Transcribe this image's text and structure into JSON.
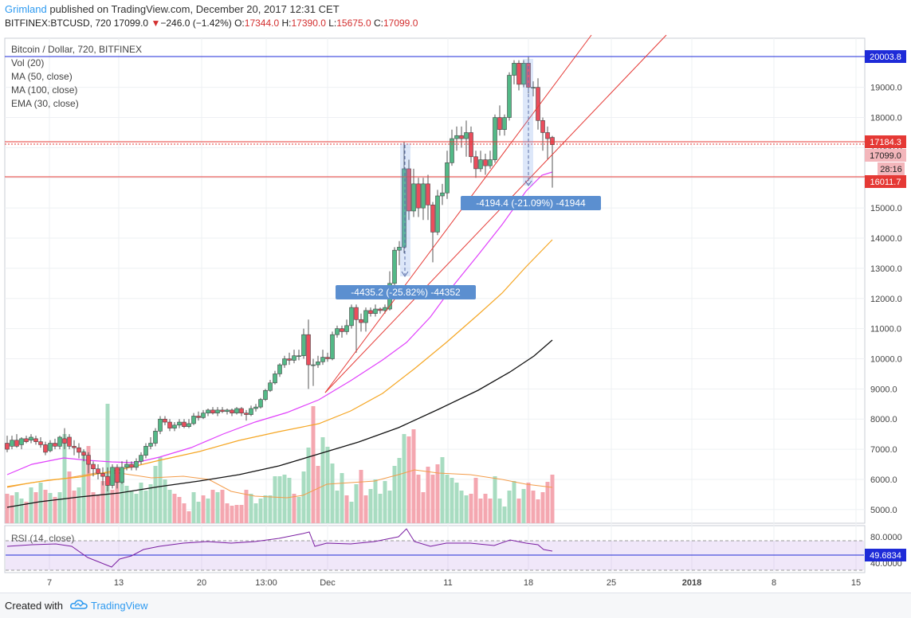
{
  "header": {
    "author": "Grimland",
    "published": "published on TradingView.com, December 20, 2017 12:31 CET",
    "symbol_line": "BITFINEX:BTCUSD, 720",
    "last": "17099.0",
    "change_arrow": "▼",
    "change": "−246.0 (−1.42%)",
    "o_label": "O:",
    "o": "17344.0",
    "h_label": "H:",
    "h": "17390.0",
    "l_label": "L:",
    "l": "15675.0",
    "c_label": "C:",
    "c": "17099.0"
  },
  "legend": {
    "title": "Bitcoin / Dollar, 720, BITFINEX",
    "items": [
      "Vol (20)",
      "MA (50, close)",
      "MA (100, close)",
      "EMA (30, close)"
    ]
  },
  "rsi": {
    "label": "RSI (14, close)",
    "value_tag": "49.6834",
    "ticks": [
      "80.0000",
      "40.0000"
    ]
  },
  "price_axis": {
    "ticks": [
      "19000.0",
      "18000.0",
      "17000.0",
      "16000.0",
      "15000.0",
      "14000.0",
      "13000.0",
      "12000.0",
      "11000.0",
      "10000.0",
      "9000.0",
      "8000.0",
      "7000.0",
      "6000.0",
      "5000.0"
    ],
    "tags": [
      {
        "text": "20003.8",
        "style": "blue"
      },
      {
        "text": "17184.3",
        "style": "red"
      },
      {
        "text": "17099.0",
        "style": "pink"
      },
      {
        "text": "28:16",
        "style": "pink"
      },
      {
        "text": "16011.7",
        "style": "red"
      }
    ]
  },
  "time_axis": {
    "ticks": [
      "7",
      "13",
      "20",
      "13:00",
      "Dec",
      "11",
      "18",
      "25",
      "2018",
      "8",
      "15"
    ]
  },
  "annotations": [
    {
      "text": "-4435.2 (-25.82%) -44352"
    },
    {
      "text": "-4194.4 (-21.09%) -41944"
    }
  ],
  "colors": {
    "up": "#53b987",
    "down": "#eb4d5c",
    "ma50": "#f5a623",
    "ma100": "#111111",
    "ema30": "#e040fb",
    "line_red": "#e53935",
    "line_blue": "#1e2bd8",
    "vol_up": "#a8dcc1",
    "vol_down": "#f4a7b0",
    "rsi": "#7b1fa2",
    "label_bg": "#5b8fd0"
  },
  "footer": {
    "created_with": "Created with",
    "brand": "TradingView"
  }
}
